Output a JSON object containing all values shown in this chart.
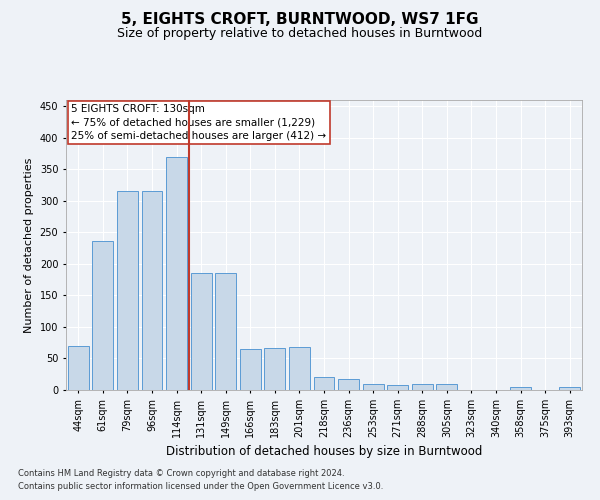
{
  "title1": "5, EIGHTS CROFT, BURNTWOOD, WS7 1FG",
  "title2": "Size of property relative to detached houses in Burntwood",
  "xlabel": "Distribution of detached houses by size in Burntwood",
  "ylabel": "Number of detached properties",
  "categories": [
    "44sqm",
    "61sqm",
    "79sqm",
    "96sqm",
    "114sqm",
    "131sqm",
    "149sqm",
    "166sqm",
    "183sqm",
    "201sqm",
    "218sqm",
    "236sqm",
    "253sqm",
    "271sqm",
    "288sqm",
    "305sqm",
    "323sqm",
    "340sqm",
    "358sqm",
    "375sqm",
    "393sqm"
  ],
  "values": [
    70,
    236,
    315,
    315,
    370,
    185,
    185,
    65,
    67,
    68,
    20,
    18,
    10,
    8,
    9,
    10,
    0,
    0,
    4,
    0,
    4
  ],
  "bar_color": "#c8d8e8",
  "bar_edge_color": "#5b9bd5",
  "vline_index": 5,
  "vline_color": "#c0392b",
  "annotation_text_line1": "5 EIGHTS CROFT: 130sqm",
  "annotation_text_line2": "← 75% of detached houses are smaller (1,229)",
  "annotation_text_line3": "25% of semi-detached houses are larger (412) →",
  "annotation_box_color": "#c0392b",
  "ylim": [
    0,
    460
  ],
  "yticks": [
    0,
    50,
    100,
    150,
    200,
    250,
    300,
    350,
    400,
    450
  ],
  "footer1": "Contains HM Land Registry data © Crown copyright and database right 2024.",
  "footer2": "Contains public sector information licensed under the Open Government Licence v3.0.",
  "background_color": "#eef2f7",
  "plot_background": "#eef2f7",
  "grid_color": "#ffffff",
  "title1_fontsize": 11,
  "title2_fontsize": 9,
  "xlabel_fontsize": 8.5,
  "ylabel_fontsize": 8,
  "tick_fontsize": 7,
  "annotation_fontsize": 7.5,
  "footer_fontsize": 6
}
